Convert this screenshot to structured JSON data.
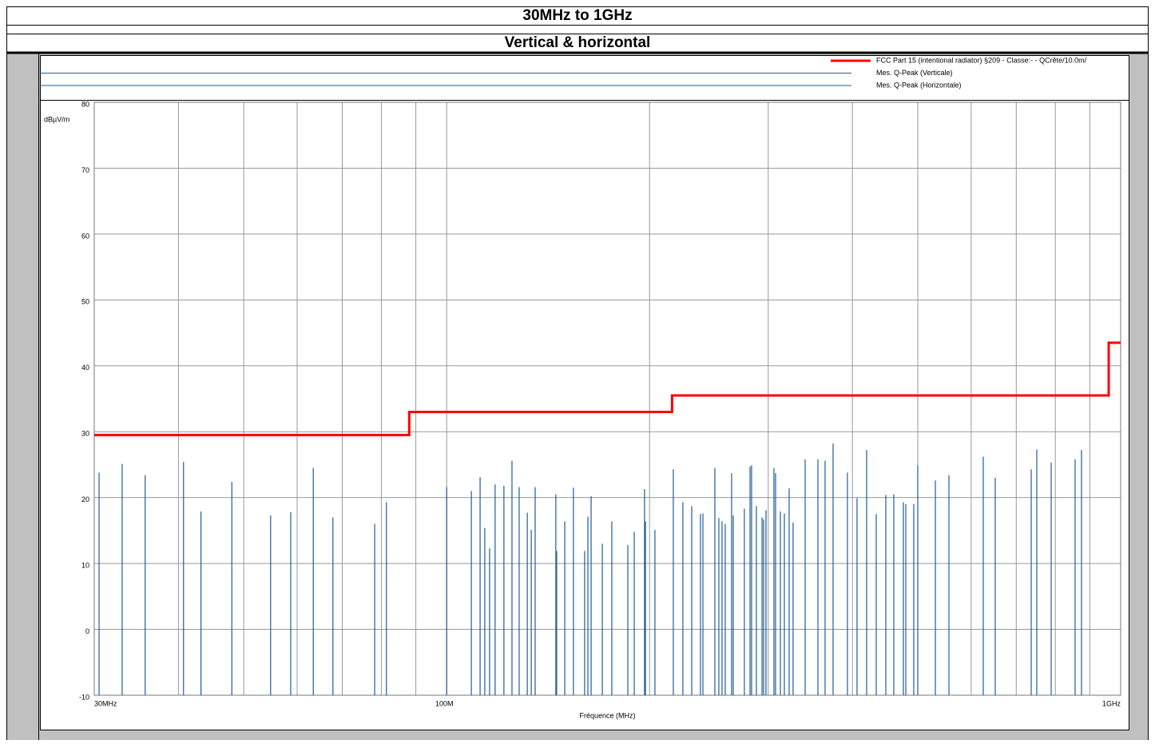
{
  "header": {
    "title": "30MHz to 1GHz",
    "subtitle": "Vertical & horizontal"
  },
  "chart_data": {
    "type": "spectrum",
    "xlabel": "Fréquence (MHz)",
    "ylabel": "dBµV/m",
    "xlog": true,
    "grid": true,
    "xlim": [
      30,
      1000
    ],
    "ylim": [
      -10,
      80
    ],
    "xticks": [
      {
        "value": 30,
        "label": "30MHz"
      },
      {
        "value": 100,
        "label": "100M"
      },
      {
        "value": 1000,
        "label": "1GHz"
      }
    ],
    "xminor_ticks": [
      40,
      50,
      60,
      70,
      80,
      90,
      200,
      300,
      400,
      500,
      600,
      700,
      800,
      900
    ],
    "yticks": [
      -10,
      0,
      10,
      20,
      30,
      40,
      50,
      60,
      70,
      80
    ],
    "series": [
      {
        "name": "FCC Part 15 (intentional radiator)  §209 - Classe:- - QCrête/10.0m/",
        "color": "#ff0000",
        "style": "line",
        "x": [
          30,
          88,
          88,
          216,
          216,
          960,
          960,
          1000
        ],
        "values": [
          29.5,
          29.5,
          33,
          33,
          35.5,
          35.5,
          43.5,
          43.5
        ]
      },
      {
        "name": "Mes. Q-Peak (Verticale)",
        "color": "#1f5c99",
        "style": "stem",
        "x": [
          30.5,
          33.0,
          35.7,
          40.7,
          43.2,
          48.0,
          54.8,
          58.7,
          63.4,
          67.8,
          78.2,
          81.4,
          100.0,
          108.8,
          112.1,
          113.9,
          115.8,
          118.0,
          121.6,
          125.0,
          128.1,
          131.7,
          133.5,
          135.3,
          145.2,
          145.6,
          149.7,
          154.2,
          160.2,
          162.0,
          163.8,
          170.2,
          175.8,
          185.7,
          189.8,
          196.6,
          197.2,
          203.7,
          216.9,
          224.1,
          231.0,
          238.0,
          240.0,
          250.0,
          253.4,
          256.2,
          259.0,
          264.7,
          266.2,
          276.5,
          281.9,
          283.4,
          288.1,
          293.7,
          295.3,
          297.7,
          305.9,
          307.6,
          312.7,
          317.0,
          322.2,
          326.6,
          340.3,
          355.5,
          364.3,
          374.4,
          393.2,
          406.3,
          419.9,
          433.9,
          448.3,
          460.7,
          476.0,
          480.0,
          493.2,
          500.0,
          531.0,
          556.2,
          625.4,
          651.5,
          736.7,
          750.9,
          788.7,
          855.9,
          874.8
        ],
        "values": [
          23.8,
          25.1,
          23.4,
          25.4,
          17.9,
          22.4,
          17.3,
          17.8,
          24.5,
          17.0,
          16.0,
          19.3,
          21.6,
          21.0,
          23.1,
          15.4,
          12.3,
          22.0,
          21.8,
          25.6,
          21.6,
          17.7,
          15.1,
          21.6,
          20.5,
          11.9,
          16.4,
          21.5,
          11.9,
          17.1,
          20.2,
          13.0,
          16.4,
          12.8,
          14.8,
          21.3,
          16.4,
          15.1,
          24.3,
          19.3,
          18.7,
          17.5,
          17.6,
          24.5,
          16.9,
          16.4,
          16.0,
          23.7,
          17.3,
          18.3,
          24.7,
          24.9,
          18.7,
          17.0,
          16.7,
          18.1,
          24.5,
          23.7,
          17.9,
          17.6,
          21.4,
          16.2,
          25.8,
          25.8,
          25.6,
          28.2,
          23.8,
          19.9,
          27.2,
          17.5,
          20.4,
          20.5,
          19.3,
          19.0,
          19.0,
          24.9,
          22.6,
          23.4,
          26.2,
          23.0,
          24.3,
          27.3,
          25.3,
          25.8,
          27.2
        ]
      },
      {
        "name": "Mes. Q-Peak (Horizontale)",
        "color": "#1f5c99",
        "style": "stem",
        "x": [],
        "values": []
      }
    ]
  }
}
